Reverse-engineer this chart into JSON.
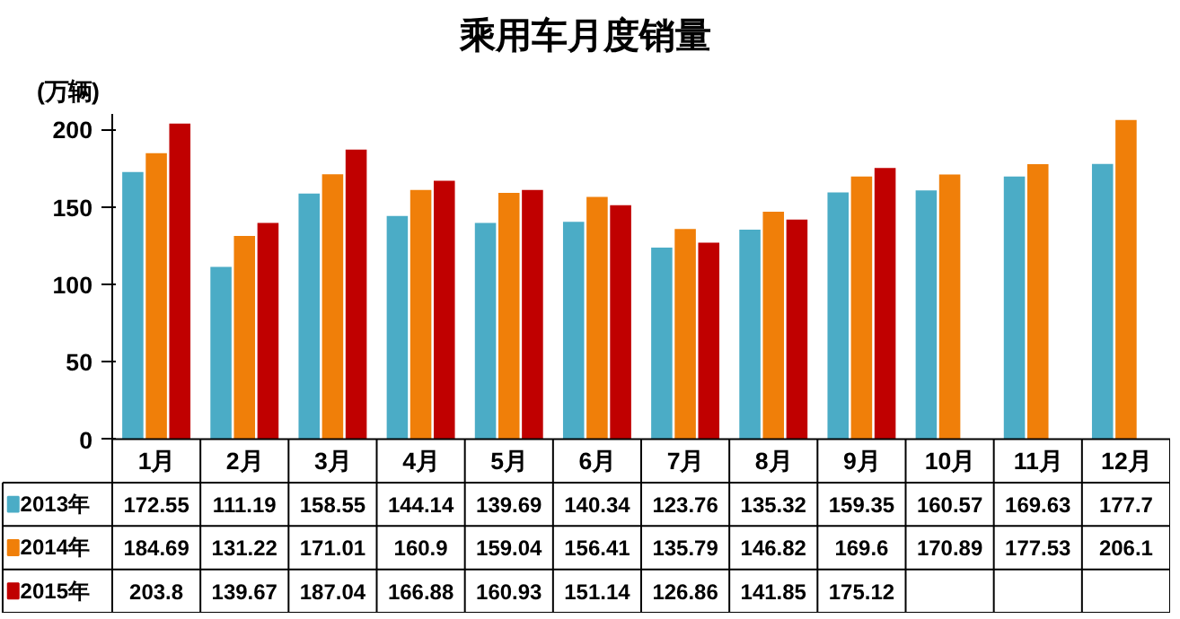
{
  "chart_data": {
    "type": "bar",
    "title": "乘用车月度销量",
    "ylabel": "(万辆)",
    "categories": [
      "1月",
      "2月",
      "3月",
      "4月",
      "5月",
      "6月",
      "7月",
      "8月",
      "9月",
      "10月",
      "11月",
      "12月"
    ],
    "series": [
      {
        "name": "2013年",
        "color": "#4bacc6",
        "values": [
          172.55,
          111.19,
          158.55,
          144.14,
          139.69,
          140.34,
          123.76,
          135.32,
          159.35,
          160.57,
          169.63,
          177.7
        ]
      },
      {
        "name": "2014年",
        "color": "#f07f09",
        "values": [
          184.69,
          131.22,
          171.01,
          160.9,
          159.04,
          156.41,
          135.79,
          146.82,
          169.6,
          170.89,
          177.53,
          206.1
        ]
      },
      {
        "name": "2015年",
        "color": "#c00000",
        "values": [
          203.8,
          139.67,
          187.04,
          166.88,
          160.93,
          151.14,
          126.86,
          141.85,
          175.12,
          null,
          null,
          null
        ]
      }
    ],
    "ylim": [
      0,
      210
    ],
    "yticks": [
      0,
      50,
      100,
      150,
      200
    ],
    "grid": false,
    "legend": "bottom",
    "data_labels": true
  }
}
